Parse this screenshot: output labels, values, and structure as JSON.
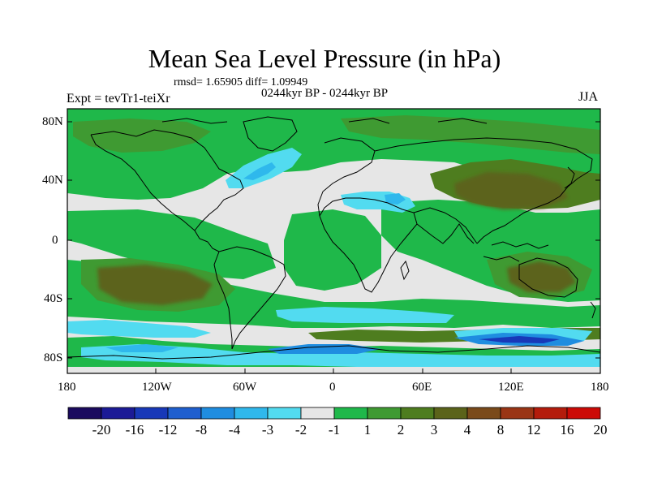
{
  "title": "Mean Sea Level Pressure (in hPa)",
  "stats": "rmsd= 1.65905  diff= 1.09949",
  "subtitle": "0244kyr BP - 0244kyr BP",
  "experiment": "Expt = tevTr1-teiXr",
  "season": "JJA",
  "y_axis_labels": [
    "80N",
    "40N",
    "0",
    "40S",
    "80S"
  ],
  "x_axis_labels": [
    "180",
    "120W",
    "60W",
    "0",
    "60E",
    "120E",
    "180"
  ],
  "colorbar": {
    "colors": [
      "#1a0a5e",
      "#1c1a96",
      "#1838b8",
      "#1f5fcf",
      "#1f8de0",
      "#2fb8ec",
      "#52dbf0",
      "#e6e6e6",
      "#1fb84a",
      "#3f9a32",
      "#4e7d1f",
      "#5b631a",
      "#7a4a1a",
      "#9a3515",
      "#b41c0c",
      "#cc0a06"
    ],
    "labels": [
      "-20",
      "-16",
      "-12",
      "-8",
      "-4",
      "-3",
      "-2",
      "-1",
      "1",
      "2",
      "3",
      "4",
      "8",
      "12",
      "16",
      "20"
    ]
  },
  "palette": {
    "land_neutral": "#e6e6e6",
    "green": "#1fb84a",
    "dark_green": "#3f9a32",
    "olive": "#4e7d1f",
    "brown": "#5b631a",
    "light_cyan": "#52dbf0",
    "cyan": "#2fb8ec",
    "blue": "#1f8de0",
    "coast": "#000000"
  }
}
